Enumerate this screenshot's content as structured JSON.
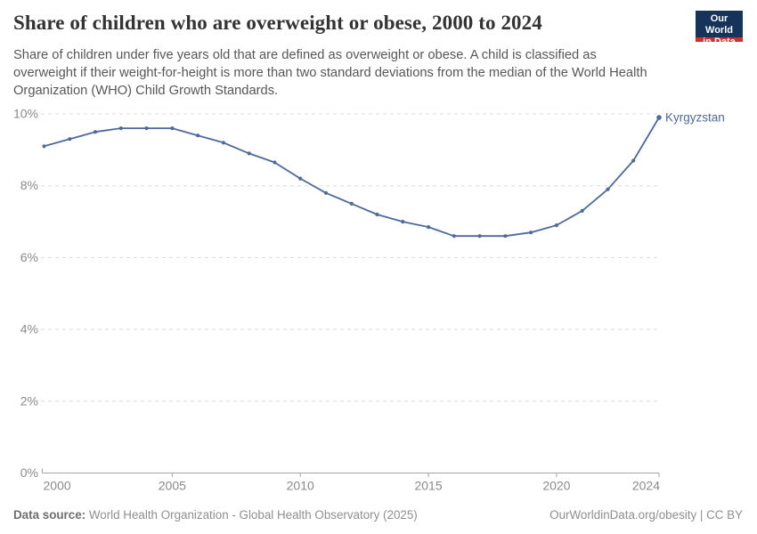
{
  "header": {
    "title": "Share of children who are overweight or obese, 2000 to 2024",
    "subtitle_lines": [
      "Share of children under five years old that are defined as overweight or obese. A child is classified as",
      "overweight if their weight-for-height is more than two standard deviations from the median of the World Health",
      "Organization (WHO) Child Growth Standards."
    ],
    "logo": {
      "line1": "Our World",
      "line2": "in Data"
    }
  },
  "chart_data": {
    "type": "line",
    "title": "Share of children who are overweight or obese, 2000 to 2024",
    "xlabel": "",
    "ylabel": "",
    "x": [
      2000,
      2001,
      2002,
      2003,
      2004,
      2005,
      2006,
      2007,
      2008,
      2009,
      2010,
      2011,
      2012,
      2013,
      2014,
      2015,
      2016,
      2017,
      2018,
      2019,
      2020,
      2021,
      2022,
      2023,
      2024
    ],
    "series": [
      {
        "name": "Kyrgyzstan",
        "values": [
          9.1,
          9.3,
          9.5,
          9.6,
          9.6,
          9.6,
          9.4,
          9.2,
          8.9,
          8.65,
          8.2,
          7.8,
          7.5,
          7.2,
          7.0,
          6.85,
          6.6,
          6.6,
          6.6,
          6.7,
          6.9,
          7.3,
          7.9,
          8.7,
          9.9
        ]
      }
    ],
    "ylim": [
      0,
      10
    ],
    "yticks": {
      "values": [
        0,
        2,
        4,
        6,
        8,
        10
      ],
      "labels": [
        "0%",
        "2%",
        "4%",
        "6%",
        "8%",
        "10%"
      ]
    },
    "xticks": {
      "values": [
        2000,
        2005,
        2010,
        2015,
        2020,
        2024
      ],
      "labels": [
        "2000",
        "2005",
        "2010",
        "2015",
        "2020",
        "2024"
      ]
    },
    "grid": "horizontal dashed",
    "legend_position": "end-of-line label",
    "line_color": "#4c6a9c",
    "entity_label_color": "#4c6a9c",
    "grid_color": "#dcdcdc",
    "axis_color": "#a3a3a3",
    "tick_label_color": "#8a8a8a"
  },
  "footer": {
    "source_label": "Data source:",
    "source_text": " World Health Organization - Global Health Observatory (2025)",
    "right_text": "OurWorldinData.org/obesity | CC BY"
  }
}
